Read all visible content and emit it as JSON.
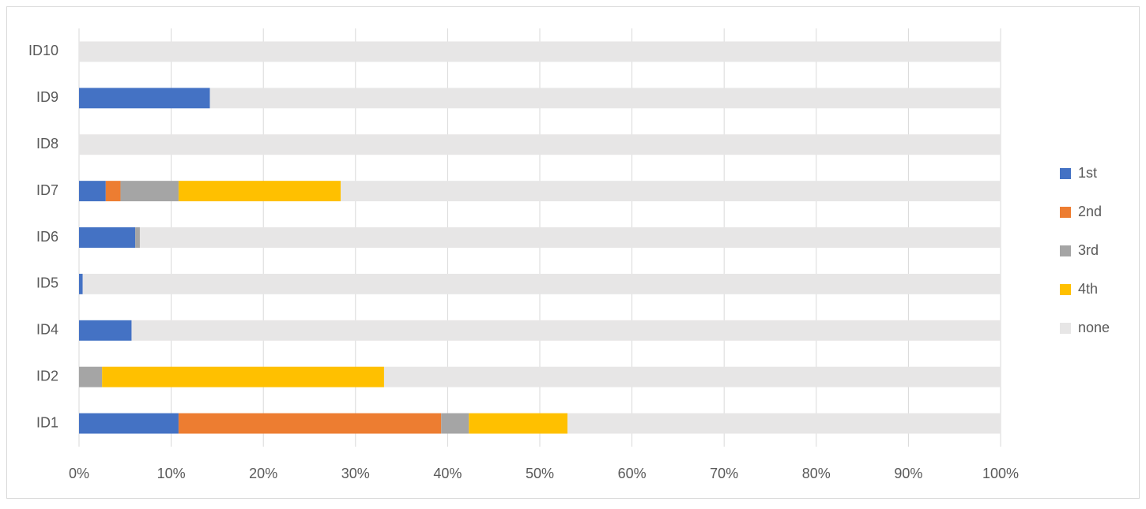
{
  "chart_data": {
    "type": "stacked-bar-horizontal",
    "categories": [
      "ID1",
      "ID2",
      "ID4",
      "ID5",
      "ID6",
      "ID7",
      "ID8",
      "ID9",
      "ID10"
    ],
    "series": [
      {
        "name": "1st",
        "color": "#4472c4",
        "values": [
          10.8,
          0,
          5.7,
          0.4,
          6.1,
          2.9,
          0,
          14.2,
          0
        ]
      },
      {
        "name": "2nd",
        "color": "#ed7d31",
        "values": [
          28.5,
          0,
          0,
          0,
          0,
          1.6,
          0,
          0,
          0
        ]
      },
      {
        "name": "3rd",
        "color": "#a5a5a5",
        "values": [
          3.0,
          2.5,
          0,
          0,
          0.5,
          6.3,
          0,
          0,
          0
        ]
      },
      {
        "name": "4th",
        "color": "#ffc000",
        "values": [
          10.7,
          30.6,
          0,
          0,
          0,
          17.6,
          0,
          0,
          0
        ]
      },
      {
        "name": "none",
        "color": "#e7e6e6",
        "values": [
          47.0,
          66.9,
          94.3,
          99.6,
          93.4,
          71.6,
          100,
          85.8,
          100
        ]
      }
    ],
    "xlim": [
      0,
      100
    ],
    "xticks": [
      {
        "value": 0,
        "label": "0%"
      },
      {
        "value": 10,
        "label": "10%"
      },
      {
        "value": 20,
        "label": "20%"
      },
      {
        "value": 30,
        "label": "30%"
      },
      {
        "value": 40,
        "label": "40%"
      },
      {
        "value": 50,
        "label": "50%"
      },
      {
        "value": 60,
        "label": "60%"
      },
      {
        "value": 70,
        "label": "70%"
      },
      {
        "value": 80,
        "label": "80%"
      },
      {
        "value": 90,
        "label": "90%"
      },
      {
        "value": 100,
        "label": "100%"
      }
    ],
    "grid": true,
    "legend": "right"
  }
}
